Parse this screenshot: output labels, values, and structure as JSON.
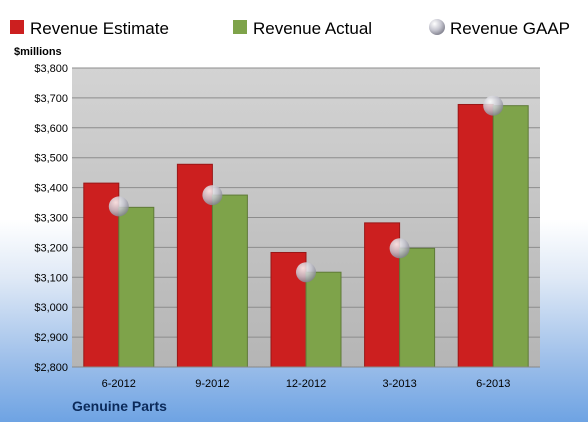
{
  "company_name": "Genuine Parts",
  "chart_data": {
    "type": "bar",
    "unit_label": "$millions",
    "categories": [
      "6-2012",
      "9-2012",
      "12-2012",
      "3-2013",
      "6-2013"
    ],
    "series": [
      {
        "name": "Revenue Estimate",
        "kind": "bar",
        "color": "#cc1f1f",
        "values": [
          3415,
          3478,
          3183,
          3282,
          3678
        ]
      },
      {
        "name": "Revenue Actual",
        "kind": "bar",
        "color": "#7ea34a",
        "values": [
          3334,
          3375,
          3117,
          3197,
          3674
        ]
      },
      {
        "name": "Revenue GAAP",
        "kind": "marker",
        "color": "#c8c8d2",
        "values": [
          3337,
          3375,
          3117,
          3197,
          3674
        ]
      }
    ],
    "ylim": [
      2800,
      3800
    ],
    "yticks": [
      2800,
      2900,
      3000,
      3100,
      3200,
      3300,
      3400,
      3500,
      3600,
      3700,
      3800
    ],
    "ytick_labels": [
      "$2,800",
      "$2,900",
      "$3,000",
      "$3,100",
      "$3,200",
      "$3,300",
      "$3,400",
      "$3,500",
      "$3,600",
      "$3,700",
      "$3,800"
    ],
    "grid": true,
    "legend_position": "top"
  }
}
